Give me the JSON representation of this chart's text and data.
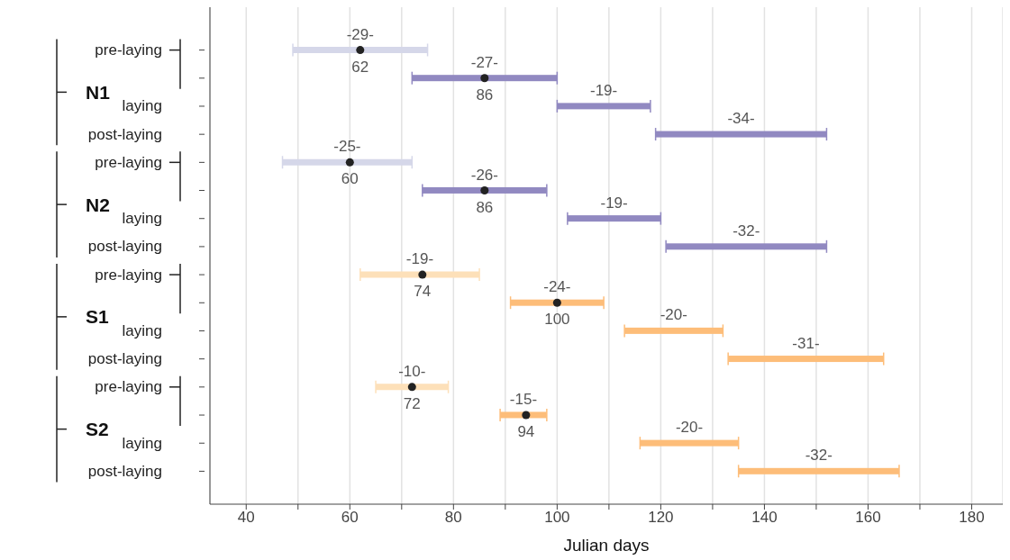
{
  "chart_data": {
    "type": "bar",
    "orientation": "horizontal",
    "xlabel": "Julian days",
    "categories": [
      "pre-laying",
      null,
      "laying",
      "post-laying",
      "pre-laying",
      null,
      "laying",
      "post-laying",
      "pre-laying",
      null,
      "laying",
      "post-laying",
      "pre-laying",
      null,
      "laying",
      "post-laying"
    ],
    "annotations": [
      "N1",
      "N2",
      "S1",
      "S2",
      "-29-",
      "-27-",
      "-19-",
      "-34-",
      "-25-",
      "-26-",
      "-19-",
      "-32-",
      "-19-",
      "-24-",
      "-20-",
      "-31-",
      "-10-",
      "-15-",
      "-20-",
      "-32-"
    ],
    "xlim": [
      33,
      186
    ],
    "xticks": [
      40,
      {
        "value": 50,
        "label": null
      },
      60,
      {
        "value": 70,
        "label": null
      },
      80,
      {
        "value": 90,
        "label": null
      },
      100,
      {
        "value": 110,
        "label": null
      },
      120,
      {
        "value": 130,
        "label": null
      },
      140,
      {
        "value": 150,
        "label": null
      },
      160,
      {
        "value": 170,
        "label": null
      },
      180
    ],
    "grid": "x",
    "series": [
      {
        "type": "bar",
        "base": [
          49,
          72,
          100,
          119,
          47,
          74,
          102,
          121,
          62,
          91,
          113,
          133,
          65,
          89,
          116,
          135
        ],
        "values": [
          26,
          28,
          18,
          33,
          25,
          24,
          18,
          31,
          23,
          18,
          19,
          30,
          14,
          9,
          19,
          31
        ],
        "colors": [
          "#d5d7e9",
          "#9189c1",
          "#9189c1",
          "#9189c1",
          "#d5d7e9",
          "#9189c1",
          "#9189c1",
          "#9189c1",
          "#fde0b9",
          "#fdbd79",
          "#fdbd79",
          "#fdbd79",
          "#fde0b9",
          "#fdbd79",
          "#fdbd79",
          "#fdbd79"
        ]
      },
      {
        "type": "scatter",
        "values": [
          62,
          86,
          null,
          null,
          60,
          86,
          null,
          null,
          74,
          100,
          null,
          null,
          72,
          94,
          null,
          null
        ],
        "color": "#222222",
        "value_labels": [
          "62",
          "86",
          null,
          null,
          "60",
          "86",
          null,
          null,
          "74",
          "100",
          null,
          null,
          "72",
          "94",
          null,
          null
        ]
      }
    ]
  }
}
